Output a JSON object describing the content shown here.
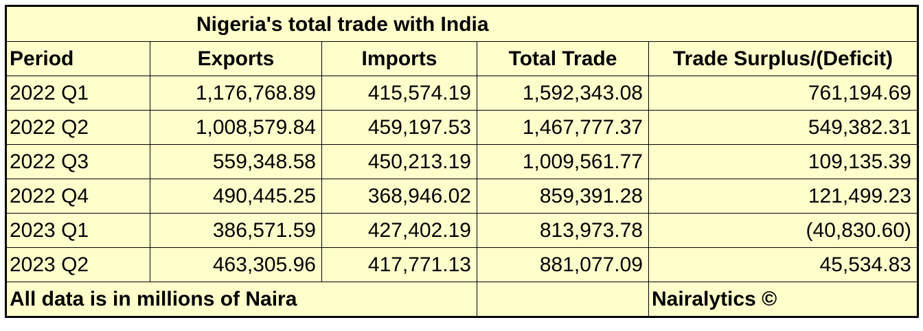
{
  "title": "Nigeria's total trade with India",
  "table": {
    "columns": [
      "Period",
      "Exports",
      "Imports",
      "Total Trade",
      "Trade Surplus/(Deficit)"
    ],
    "rows": [
      [
        "2022 Q1",
        "1,176,768.89",
        "415,574.19",
        "1,592,343.08",
        "761,194.69"
      ],
      [
        "2022 Q2",
        "1,008,579.84",
        "459,197.53",
        "1,467,777.37",
        "549,382.31"
      ],
      [
        "2022 Q3",
        "559,348.58",
        "450,213.19",
        "1,009,561.77",
        "109,135.39"
      ],
      [
        "2022 Q4",
        "490,445.25",
        "368,946.02",
        "859,391.28",
        "121,499.23"
      ],
      [
        "2023 Q1",
        "386,571.59",
        "427,402.19",
        "813,973.78",
        "(40,830.60)"
      ],
      [
        "2023 Q2",
        "463,305.96",
        "417,771.13",
        "881,077.09",
        "45,534.83"
      ]
    ]
  },
  "footer": {
    "note": "All data is in millions of Naira",
    "credit": "Nairalytics ©"
  }
}
